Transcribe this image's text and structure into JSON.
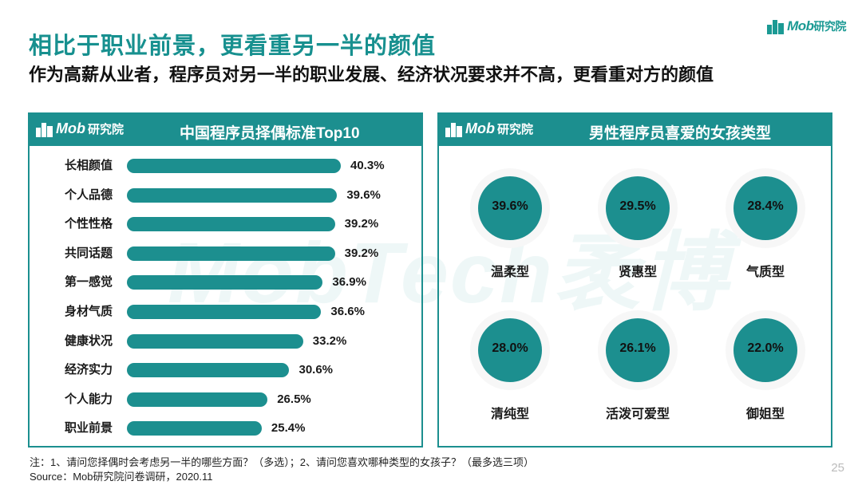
{
  "header": {
    "title": "相比于职业前景，更看重另一半的颜值",
    "subtitle": "作为高薪从业者，程序员对另一半的职业发展、经济状况要求并不高，更看重对方的颜值",
    "brand_latin": "Mob",
    "brand_cn": "研究院"
  },
  "watermark": "MobTech袤博",
  "colors": {
    "accent": "#1c8f8f",
    "brand": "#1b9a94"
  },
  "left_panel": {
    "logo_latin": "Mob",
    "logo_cn": "研究院",
    "title": "中国程序员择偶标准Top10"
  },
  "right_panel": {
    "logo_latin": "Mob",
    "logo_cn": "研究院",
    "title": "男性程序员喜爱的女孩类型",
    "types": [
      {
        "value": "39.6%",
        "label": "温柔型"
      },
      {
        "value": "29.5%",
        "label": "贤惠型"
      },
      {
        "value": "28.4%",
        "label": "气质型"
      },
      {
        "value": "28.0%",
        "label": "清纯型"
      },
      {
        "value": "26.1%",
        "label": "活泼可爱型"
      },
      {
        "value": "22.0%",
        "label": "御姐型"
      }
    ]
  },
  "chart_data": {
    "type": "bar",
    "orientation": "horizontal",
    "title": "中国程序员择偶标准Top10",
    "categories": [
      "长相颜值",
      "个人品德",
      "个性性格",
      "共同话题",
      "第一感觉",
      "身材气质",
      "健康状况",
      "经济实力",
      "个人能力",
      "职业前景"
    ],
    "values": [
      40.3,
      39.6,
      39.2,
      39.2,
      36.9,
      36.6,
      33.2,
      30.6,
      26.5,
      25.4
    ],
    "value_labels": [
      "40.3%",
      "39.6%",
      "39.2%",
      "39.2%",
      "36.9%",
      "36.6%",
      "33.2%",
      "30.6%",
      "26.5%",
      "25.4%"
    ],
    "xlim": [
      0,
      40.3
    ]
  },
  "footer": {
    "note": "注：1、请问您择偶时会考虑另一半的哪些方面？（多选）；2、请问您喜欢哪种类型的女孩子？（最多选三项）",
    "source": "Source：Mob研究院问卷调研，2020.11",
    "page_number": "25"
  }
}
